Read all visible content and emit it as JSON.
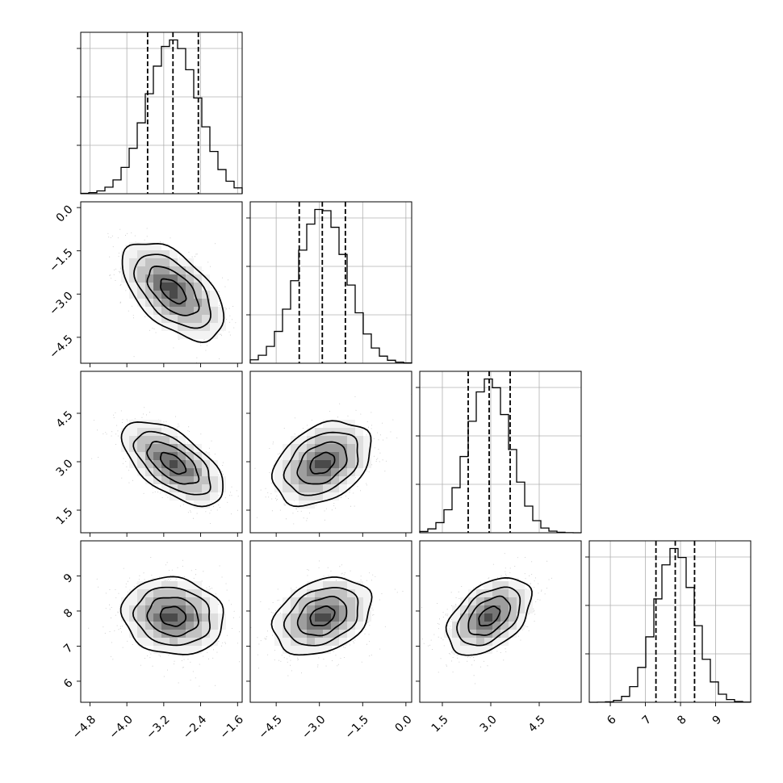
{
  "chart_data": {
    "type": "corner",
    "title": "",
    "parameters": [
      {
        "index": 0,
        "mean": -3.0,
        "sd": 0.55,
        "range": [
          -5.0,
          -1.5
        ],
        "ticks": [
          -4.8,
          -4.0,
          -3.2,
          -2.4,
          -1.6
        ],
        "tick_labels": [
          "−4.8",
          "−4.0",
          "−3.2",
          "−2.4",
          "−1.6"
        ],
        "quantiles": [
          -3.55,
          -3.0,
          -2.45
        ]
      },
      {
        "index": 1,
        "mean": -2.9,
        "sd": 0.85,
        "range": [
          -5.4,
          0.2
        ],
        "ticks": [
          -4.5,
          -3.0,
          -1.5,
          0.0
        ],
        "tick_labels": [
          "−4.5",
          "−3.0",
          "−1.5",
          "0.0"
        ],
        "quantiles": [
          -3.7,
          -2.9,
          -2.1
        ]
      },
      {
        "index": 2,
        "mean": 2.95,
        "sd": 0.65,
        "range": [
          0.8,
          5.8
        ],
        "ticks": [
          1.5,
          3.0,
          4.5
        ],
        "tick_labels": [
          "1.5",
          "3.0",
          "4.5"
        ],
        "quantiles": [
          2.3,
          2.95,
          3.6
        ]
      },
      {
        "index": 3,
        "mean": 7.85,
        "sd": 0.55,
        "range": [
          5.4,
          10.0
        ],
        "ticks": [
          6,
          7,
          8,
          9
        ],
        "tick_labels": [
          "6",
          "7",
          "8",
          "9"
        ],
        "quantiles": [
          7.3,
          7.85,
          8.4
        ]
      }
    ],
    "correlations": [
      {
        "x": 0,
        "y": 1,
        "rho": -0.55
      },
      {
        "x": 0,
        "y": 2,
        "rho": -0.6
      },
      {
        "x": 1,
        "y": 2,
        "rho": 0.35
      },
      {
        "x": 0,
        "y": 3,
        "rho": -0.1
      },
      {
        "x": 1,
        "y": 3,
        "rho": 0.3
      },
      {
        "x": 2,
        "y": 3,
        "rho": 0.45
      }
    ],
    "histogram_bins": 20,
    "contour_levels": [
      "0.5σ",
      "1σ",
      "1.5σ",
      "2σ"
    ],
    "grid": true,
    "colors": {
      "line": "#000000",
      "grid": "#b0b0b0",
      "density": "#000000",
      "points": "#808080"
    }
  }
}
